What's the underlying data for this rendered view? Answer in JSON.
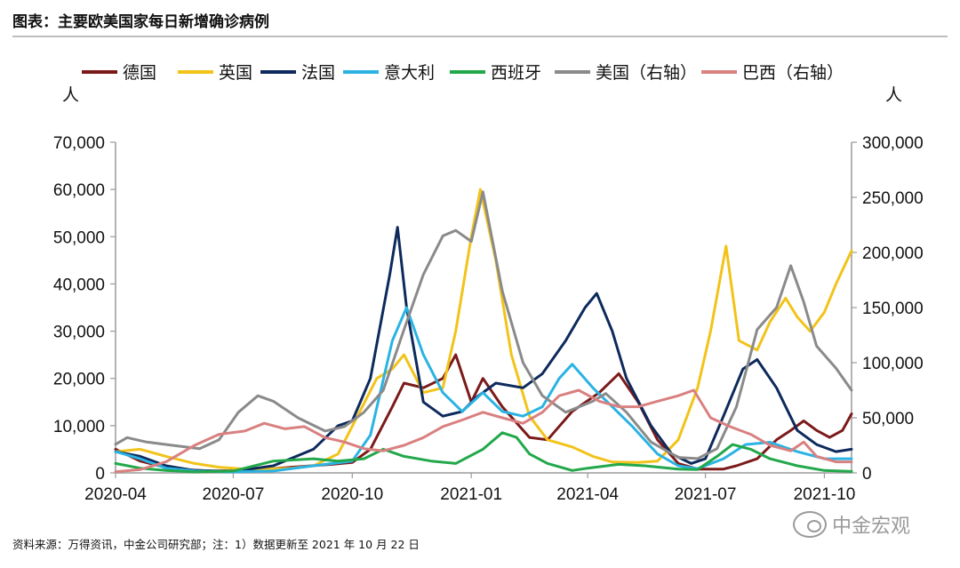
{
  "header": {
    "title": "图表：主要欧美国家每日新增确诊病例"
  },
  "footer": {
    "source": "资料来源：万得资讯，中金公司研究部；注：1）数据更新至 2021 年 10 月 22 日"
  },
  "watermark": {
    "text": "中金宏观",
    "icon": "wechat-bubble-icon"
  },
  "chart_data": {
    "type": "line",
    "title": "",
    "xlabel": "",
    "ylabel_left": "人",
    "ylabel_right": "人",
    "x_ticks": [
      "2020-04",
      "2020-07",
      "2020-10",
      "2021-01",
      "2021-04",
      "2021-07",
      "2021-10"
    ],
    "x_range": [
      "2020-04-01",
      "2021-10-22"
    ],
    "ylim_left": [
      0,
      70000
    ],
    "yticks_left": [
      "0",
      "10,000",
      "20,000",
      "30,000",
      "40,000",
      "50,000",
      "60,000",
      "70,000"
    ],
    "ylim_right": [
      0,
      300000
    ],
    "yticks_right": [
      "0",
      "50,000",
      "100,000",
      "150,000",
      "200,000",
      "250,000",
      "300,000"
    ],
    "grid": false,
    "legend_position": "top",
    "series": [
      {
        "name": "德国",
        "color": "#7b1a1a",
        "axis": "left",
        "points": [
          [
            "2020-04-01",
            5000
          ],
          [
            "2020-04-20",
            2500
          ],
          [
            "2020-05-15",
            800
          ],
          [
            "2020-06-15",
            400
          ],
          [
            "2020-07-15",
            500
          ],
          [
            "2020-08-15",
            1200
          ],
          [
            "2020-09-15",
            1800
          ],
          [
            "2020-10-01",
            2200
          ],
          [
            "2020-10-15",
            5000
          ],
          [
            "2020-11-01",
            14000
          ],
          [
            "2020-11-10",
            19000
          ],
          [
            "2020-11-25",
            18000
          ],
          [
            "2020-12-10",
            20000
          ],
          [
            "2020-12-20",
            25000
          ],
          [
            "2021-01-01",
            15000
          ],
          [
            "2021-01-10",
            20000
          ],
          [
            "2021-01-25",
            14000
          ],
          [
            "2021-02-15",
            7500
          ],
          [
            "2021-03-01",
            7000
          ],
          [
            "2021-03-20",
            13000
          ],
          [
            "2021-04-10",
            17000
          ],
          [
            "2021-04-25",
            21000
          ],
          [
            "2021-05-10",
            15000
          ],
          [
            "2021-05-25",
            7000
          ],
          [
            "2021-06-10",
            2000
          ],
          [
            "2021-06-25",
            800
          ],
          [
            "2021-07-15",
            800
          ],
          [
            "2021-07-25",
            1500
          ],
          [
            "2021-08-10",
            3000
          ],
          [
            "2021-08-25",
            7000
          ],
          [
            "2021-09-05",
            9000
          ],
          [
            "2021-09-15",
            11000
          ],
          [
            "2021-09-25",
            9000
          ],
          [
            "2021-10-05",
            7500
          ],
          [
            "2021-10-15",
            9000
          ],
          [
            "2021-10-22",
            12500
          ]
        ]
      },
      {
        "name": "英国",
        "color": "#f2c31a",
        "axis": "left",
        "points": [
          [
            "2020-04-01",
            4500
          ],
          [
            "2020-04-20",
            5000
          ],
          [
            "2020-05-10",
            3500
          ],
          [
            "2020-06-01",
            2000
          ],
          [
            "2020-06-20",
            1200
          ],
          [
            "2020-07-15",
            700
          ],
          [
            "2020-08-15",
            1000
          ],
          [
            "2020-09-01",
            1500
          ],
          [
            "2020-09-20",
            4000
          ],
          [
            "2020-10-05",
            12000
          ],
          [
            "2020-10-20",
            20000
          ],
          [
            "2020-11-01",
            22000
          ],
          [
            "2020-11-10",
            25000
          ],
          [
            "2020-11-25",
            17000
          ],
          [
            "2020-12-10",
            18000
          ],
          [
            "2020-12-20",
            30000
          ],
          [
            "2021-01-01",
            50000
          ],
          [
            "2021-01-08",
            60000
          ],
          [
            "2021-01-20",
            45000
          ],
          [
            "2021-02-01",
            25000
          ],
          [
            "2021-02-15",
            12000
          ],
          [
            "2021-03-01",
            7000
          ],
          [
            "2021-03-20",
            5500
          ],
          [
            "2021-04-05",
            3500
          ],
          [
            "2021-04-20",
            2300
          ],
          [
            "2021-05-10",
            2200
          ],
          [
            "2021-05-25",
            2500
          ],
          [
            "2021-06-10",
            7000
          ],
          [
            "2021-06-25",
            18000
          ],
          [
            "2021-07-05",
            30000
          ],
          [
            "2021-07-17",
            48000
          ],
          [
            "2021-07-27",
            28000
          ],
          [
            "2021-08-10",
            26000
          ],
          [
            "2021-08-20",
            32000
          ],
          [
            "2021-09-01",
            37000
          ],
          [
            "2021-09-10",
            33000
          ],
          [
            "2021-09-20",
            30000
          ],
          [
            "2021-10-01",
            34000
          ],
          [
            "2021-10-10",
            40000
          ],
          [
            "2021-10-22",
            47000
          ]
        ]
      },
      {
        "name": "法国",
        "color": "#0d2a5c",
        "axis": "left",
        "points": [
          [
            "2020-04-01",
            4500
          ],
          [
            "2020-04-20",
            3500
          ],
          [
            "2020-05-10",
            1500
          ],
          [
            "2020-06-01",
            500
          ],
          [
            "2020-07-01",
            300
          ],
          [
            "2020-08-01",
            1500
          ],
          [
            "2020-09-01",
            5000
          ],
          [
            "2020-09-20",
            10000
          ],
          [
            "2020-10-01",
            11000
          ],
          [
            "2020-10-15",
            20000
          ],
          [
            "2020-10-30",
            42000
          ],
          [
            "2020-11-05",
            52000
          ],
          [
            "2020-11-12",
            35000
          ],
          [
            "2020-11-25",
            15000
          ],
          [
            "2020-12-10",
            12000
          ],
          [
            "2020-12-25",
            13000
          ],
          [
            "2021-01-05",
            16000
          ],
          [
            "2021-01-20",
            19000
          ],
          [
            "2021-02-10",
            18000
          ],
          [
            "2021-02-25",
            21000
          ],
          [
            "2021-03-15",
            28000
          ],
          [
            "2021-03-30",
            35000
          ],
          [
            "2021-04-08",
            38000
          ],
          [
            "2021-04-20",
            30000
          ],
          [
            "2021-05-01",
            20000
          ],
          [
            "2021-05-20",
            10000
          ],
          [
            "2021-06-05",
            4000
          ],
          [
            "2021-06-20",
            2000
          ],
          [
            "2021-07-01",
            3000
          ],
          [
            "2021-07-15",
            12000
          ],
          [
            "2021-07-30",
            22000
          ],
          [
            "2021-08-10",
            24000
          ],
          [
            "2021-08-25",
            18000
          ],
          [
            "2021-09-10",
            9000
          ],
          [
            "2021-09-25",
            6000
          ],
          [
            "2021-10-10",
            4500
          ],
          [
            "2021-10-22",
            5000
          ]
        ]
      },
      {
        "name": "意大利",
        "color": "#2ab3e3",
        "axis": "left",
        "points": [
          [
            "2020-04-01",
            4500
          ],
          [
            "2020-04-20",
            3000
          ],
          [
            "2020-05-10",
            1000
          ],
          [
            "2020-06-01",
            400
          ],
          [
            "2020-07-01",
            200
          ],
          [
            "2020-08-01",
            400
          ],
          [
            "2020-09-01",
            1500
          ],
          [
            "2020-10-01",
            2500
          ],
          [
            "2020-10-15",
            8000
          ],
          [
            "2020-11-01",
            28000
          ],
          [
            "2020-11-12",
            35000
          ],
          [
            "2020-11-25",
            25000
          ],
          [
            "2020-12-10",
            17000
          ],
          [
            "2020-12-25",
            13000
          ],
          [
            "2021-01-10",
            17000
          ],
          [
            "2021-01-25",
            13000
          ],
          [
            "2021-02-10",
            12000
          ],
          [
            "2021-02-25",
            14000
          ],
          [
            "2021-03-10",
            20000
          ],
          [
            "2021-03-20",
            23000
          ],
          [
            "2021-04-05",
            18000
          ],
          [
            "2021-04-20",
            14000
          ],
          [
            "2021-05-05",
            10000
          ],
          [
            "2021-05-25",
            4000
          ],
          [
            "2021-06-10",
            1500
          ],
          [
            "2021-06-25",
            900
          ],
          [
            "2021-07-15",
            3000
          ],
          [
            "2021-08-01",
            6000
          ],
          [
            "2021-08-20",
            6500
          ],
          [
            "2021-09-10",
            4500
          ],
          [
            "2021-10-01",
            3000
          ],
          [
            "2021-10-22",
            3000
          ]
        ]
      },
      {
        "name": "西班牙",
        "color": "#22a84a",
        "axis": "left",
        "points": [
          [
            "2020-04-01",
            2000
          ],
          [
            "2020-04-20",
            1000
          ],
          [
            "2020-05-10",
            500
          ],
          [
            "2020-06-01",
            200
          ],
          [
            "2020-07-01",
            400
          ],
          [
            "2020-08-01",
            2500
          ],
          [
            "2020-09-01",
            3000
          ],
          [
            "2020-09-20",
            2500
          ],
          [
            "2020-10-10",
            3000
          ],
          [
            "2020-10-25",
            5000
          ],
          [
            "2020-11-10",
            3500
          ],
          [
            "2020-12-01",
            2500
          ],
          [
            "2020-12-20",
            2000
          ],
          [
            "2021-01-10",
            5000
          ],
          [
            "2021-01-25",
            8500
          ],
          [
            "2021-02-05",
            7500
          ],
          [
            "2021-02-15",
            4000
          ],
          [
            "2021-03-01",
            2000
          ],
          [
            "2021-03-20",
            500
          ],
          [
            "2021-04-01",
            1000
          ],
          [
            "2021-04-25",
            1800
          ],
          [
            "2021-05-15",
            1500
          ],
          [
            "2021-06-10",
            800
          ],
          [
            "2021-06-25",
            700
          ],
          [
            "2021-07-10",
            3500
          ],
          [
            "2021-07-22",
            6000
          ],
          [
            "2021-08-05",
            5000
          ],
          [
            "2021-08-20",
            3000
          ],
          [
            "2021-09-10",
            1500
          ],
          [
            "2021-10-01",
            500
          ],
          [
            "2021-10-22",
            300
          ]
        ]
      },
      {
        "name": "美国（右轴）",
        "color": "#8a8a8a",
        "axis": "right",
        "points": [
          [
            "2020-04-01",
            26000
          ],
          [
            "2020-04-10",
            32000
          ],
          [
            "2020-04-25",
            28000
          ],
          [
            "2020-05-15",
            25000
          ],
          [
            "2020-06-05",
            22000
          ],
          [
            "2020-06-20",
            30000
          ],
          [
            "2020-07-05",
            55000
          ],
          [
            "2020-07-20",
            70000
          ],
          [
            "2020-08-01",
            65000
          ],
          [
            "2020-08-20",
            50000
          ],
          [
            "2020-09-10",
            38000
          ],
          [
            "2020-09-25",
            42000
          ],
          [
            "2020-10-10",
            55000
          ],
          [
            "2020-10-25",
            75000
          ],
          [
            "2020-11-10",
            130000
          ],
          [
            "2020-11-25",
            180000
          ],
          [
            "2020-12-10",
            215000
          ],
          [
            "2020-12-20",
            220000
          ],
          [
            "2021-01-01",
            210000
          ],
          [
            "2021-01-10",
            255000
          ],
          [
            "2021-01-25",
            165000
          ],
          [
            "2021-02-10",
            100000
          ],
          [
            "2021-02-25",
            70000
          ],
          [
            "2021-03-15",
            55000
          ],
          [
            "2021-04-05",
            65000
          ],
          [
            "2021-04-15",
            72000
          ],
          [
            "2021-05-01",
            55000
          ],
          [
            "2021-05-20",
            28000
          ],
          [
            "2021-06-10",
            14000
          ],
          [
            "2021-06-25",
            13000
          ],
          [
            "2021-07-10",
            22000
          ],
          [
            "2021-07-25",
            60000
          ],
          [
            "2021-08-10",
            130000
          ],
          [
            "2021-08-25",
            150000
          ],
          [
            "2021-09-05",
            188000
          ],
          [
            "2021-09-15",
            155000
          ],
          [
            "2021-09-25",
            115000
          ],
          [
            "2021-10-10",
            95000
          ],
          [
            "2021-10-22",
            75000
          ]
        ]
      },
      {
        "name": "巴西（右轴）",
        "color": "#d98080",
        "axis": "right",
        "points": [
          [
            "2020-04-01",
            1000
          ],
          [
            "2020-04-20",
            3000
          ],
          [
            "2020-05-10",
            10000
          ],
          [
            "2020-06-01",
            25000
          ],
          [
            "2020-06-20",
            35000
          ],
          [
            "2020-07-10",
            38000
          ],
          [
            "2020-07-25",
            45000
          ],
          [
            "2020-08-10",
            40000
          ],
          [
            "2020-08-25",
            42000
          ],
          [
            "2020-09-10",
            32000
          ],
          [
            "2020-09-25",
            28000
          ],
          [
            "2020-10-10",
            22000
          ],
          [
            "2020-10-25",
            20000
          ],
          [
            "2020-11-10",
            25000
          ],
          [
            "2020-11-25",
            32000
          ],
          [
            "2020-12-10",
            42000
          ],
          [
            "2020-12-25",
            48000
          ],
          [
            "2021-01-10",
            55000
          ],
          [
            "2021-01-25",
            50000
          ],
          [
            "2021-02-10",
            45000
          ],
          [
            "2021-02-25",
            55000
          ],
          [
            "2021-03-10",
            70000
          ],
          [
            "2021-03-25",
            75000
          ],
          [
            "2021-04-10",
            65000
          ],
          [
            "2021-04-25",
            60000
          ],
          [
            "2021-05-10",
            60000
          ],
          [
            "2021-05-25",
            65000
          ],
          [
            "2021-06-10",
            70000
          ],
          [
            "2021-06-22",
            75000
          ],
          [
            "2021-07-05",
            50000
          ],
          [
            "2021-07-20",
            42000
          ],
          [
            "2021-08-05",
            35000
          ],
          [
            "2021-08-20",
            25000
          ],
          [
            "2021-09-05",
            20000
          ],
          [
            "2021-09-15",
            28000
          ],
          [
            "2021-09-25",
            15000
          ],
          [
            "2021-10-10",
            10000
          ],
          [
            "2021-10-22",
            10000
          ]
        ]
      }
    ]
  }
}
